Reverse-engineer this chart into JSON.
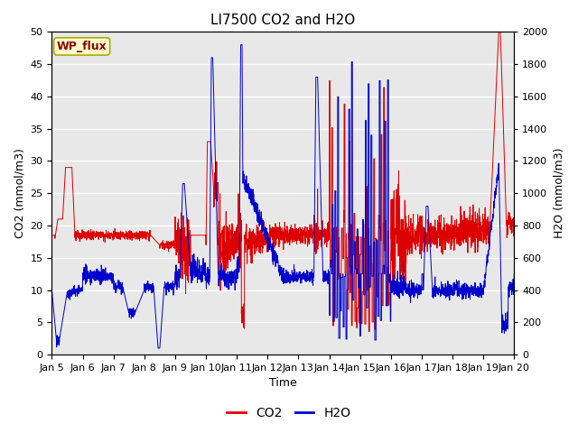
{
  "title": "LI7500 CO2 and H2O",
  "xlabel": "Time",
  "ylabel_left": "CO2 (mmol/m3)",
  "ylabel_right": "H2O (mmol/m3)",
  "legend_label": "WP_flux",
  "co2_color": "#dd0000",
  "h2o_color": "#0000cc",
  "background_color": "#e8e8e8",
  "ylim_left": [
    0,
    50
  ],
  "ylim_right": [
    0,
    2000
  ],
  "x_tick_labels": [
    "Jan 5",
    "Jan 6",
    "Jan 7",
    "Jan 8",
    "Jan 9",
    "Jan 10",
    "Jan 11",
    "Jan 12",
    "Jan 13",
    "Jan 14",
    "Jan 15",
    "Jan 16",
    "Jan 17",
    "Jan 18",
    "Jan 19",
    "Jan 20"
  ],
  "title_fontsize": 11,
  "axis_label_fontsize": 9,
  "tick_fontsize": 8,
  "legend_fontsize": 10
}
